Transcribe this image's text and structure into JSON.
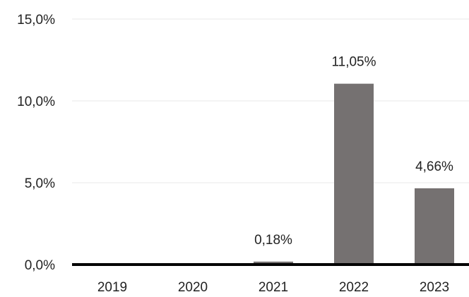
{
  "chart_data": {
    "type": "bar",
    "title": "",
    "xlabel": "",
    "ylabel": "",
    "categories": [
      "2019",
      "2020",
      "2021",
      "2022",
      "2023"
    ],
    "values": [
      0,
      0,
      0.18,
      11.05,
      4.66
    ],
    "data_labels": [
      "",
      "",
      "0,18%",
      "11,05%",
      "4,66%"
    ],
    "ylim": [
      0,
      15
    ],
    "yticks": [
      0,
      5,
      10,
      15
    ],
    "ytick_labels": [
      "0,0%",
      "5,0%",
      "10,0%",
      "15,0%"
    ],
    "grid": true,
    "legend": "none",
    "colors": {
      "bar": "#757171",
      "axis": "#000000",
      "grid": "#e8e8e8",
      "text": "#222222"
    }
  }
}
